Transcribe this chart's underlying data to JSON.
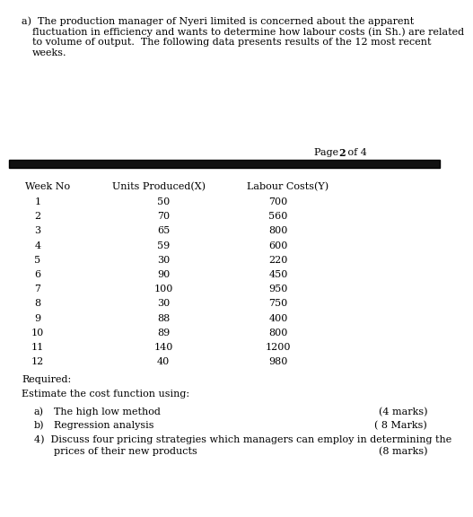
{
  "bg_color": "#ffffff",
  "text_color": "#000000",
  "page_label_normal": "Page ",
  "page_label_bold": "2",
  "page_label_end": " of 4",
  "table_headers": [
    "Week No",
    "Units Produced(X)",
    "Labour Costs(Y)"
  ],
  "table_data": [
    [
      1,
      50,
      700
    ],
    [
      2,
      70,
      560
    ],
    [
      3,
      65,
      800
    ],
    [
      4,
      59,
      600
    ],
    [
      5,
      30,
      220
    ],
    [
      6,
      90,
      450
    ],
    [
      7,
      100,
      950
    ],
    [
      8,
      30,
      750
    ],
    [
      9,
      88,
      400
    ],
    [
      10,
      89,
      800
    ],
    [
      11,
      140,
      1200
    ],
    [
      12,
      40,
      980
    ]
  ],
  "required_label": "Required:",
  "estimate_label": "Estimate the cost function using:",
  "sub_items": [
    [
      "a)",
      "The high low method",
      "(4 marks)"
    ],
    [
      "b)",
      "Regression analysis",
      "( 8 Marks)"
    ]
  ],
  "q4_line1": "4)  Discuss four pricing strategies which managers can employ in determining the",
  "q4_line2": "prices of their new products",
  "q4_marks": "(8 marks)",
  "separator_color": "#111111",
  "font_size": 8.0,
  "intro_line1": "a)  The production manager of Nyeri limited is concerned about the apparent",
  "intro_line2": "fluctuation in efficiency and wants to determine how labour costs (in Sh.) are related",
  "intro_line3": "to volume of output.  The following data presents results of the 12 most recent",
  "intro_line4": "weeks."
}
